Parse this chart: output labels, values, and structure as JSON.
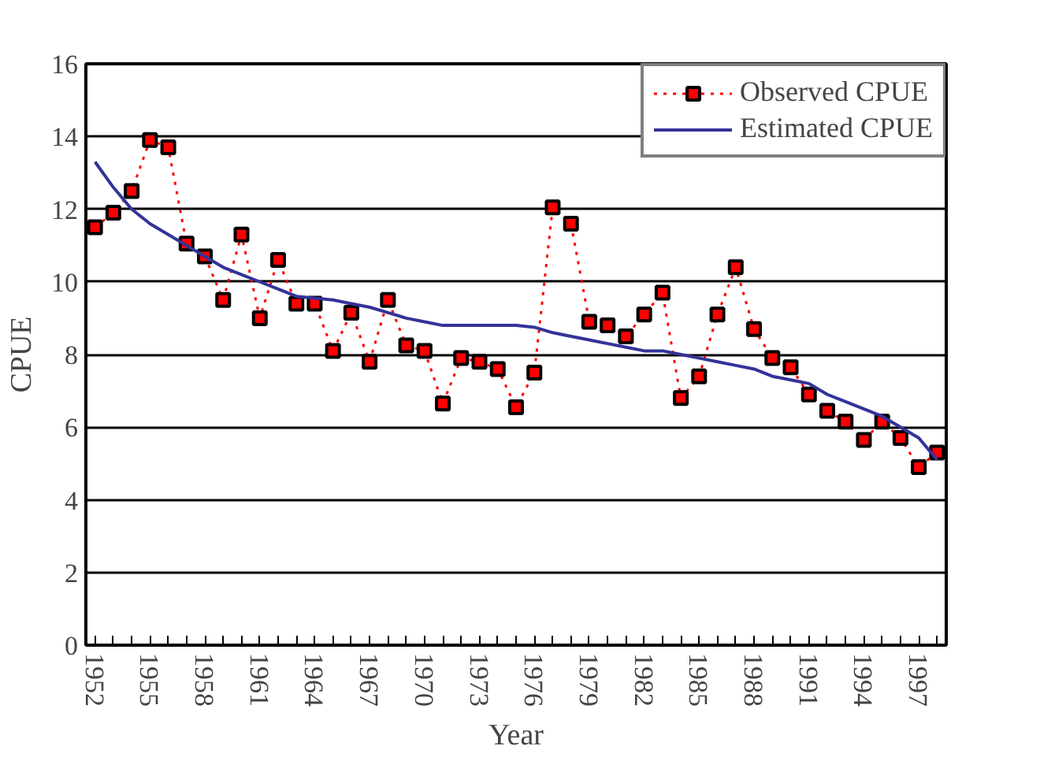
{
  "chart_data": {
    "type": "line",
    "xlabel": "Year",
    "ylabel": "CPUE",
    "categories": [
      "1952",
      null,
      null,
      "1955",
      null,
      null,
      "1958",
      null,
      null,
      "1961",
      null,
      null,
      "1964",
      null,
      null,
      "1967",
      null,
      null,
      "1970",
      null,
      null,
      "1973",
      null,
      null,
      "1976",
      null,
      null,
      "1979",
      null,
      null,
      "1982",
      null,
      null,
      "1985",
      null,
      null,
      "1988",
      null,
      null,
      "1991",
      null,
      null,
      "1994",
      null,
      null,
      "1997",
      null
    ],
    "series": [
      {
        "name": "Observed CPUE",
        "color": "#ff0000",
        "marker": "square",
        "line_style": "dotted",
        "values": [
          11.5,
          11.9,
          12.5,
          13.9,
          13.7,
          11.05,
          10.7,
          9.5,
          11.3,
          9.0,
          10.6,
          9.4,
          9.4,
          8.1,
          9.15,
          7.8,
          9.5,
          8.25,
          8.1,
          6.65,
          7.9,
          7.8,
          7.6,
          6.55,
          7.5,
          12.05,
          11.6,
          8.9,
          8.8,
          8.5,
          9.1,
          9.7,
          6.8,
          7.4,
          9.1,
          10.4,
          8.7,
          7.9,
          7.65,
          6.9,
          6.45,
          6.15,
          5.65,
          6.15,
          5.7,
          4.9,
          5.3
        ]
      },
      {
        "name": "Estimated CPUE",
        "color": "#333399",
        "marker": "none",
        "line_style": "solid",
        "values": [
          13.3,
          12.6,
          12.0,
          11.6,
          11.3,
          11.0,
          10.7,
          10.4,
          10.2,
          10.0,
          9.8,
          9.6,
          9.55,
          9.5,
          9.4,
          9.3,
          9.15,
          9.0,
          8.9,
          8.8,
          8.8,
          8.8,
          8.8,
          8.8,
          8.75,
          8.6,
          8.5,
          8.4,
          8.3,
          8.2,
          8.1,
          8.1,
          8.0,
          7.9,
          7.8,
          7.7,
          7.6,
          7.4,
          7.3,
          7.2,
          6.9,
          6.7,
          6.5,
          6.3,
          6.0,
          5.7,
          5.1
        ]
      }
    ],
    "ylim": [
      0,
      16
    ],
    "yticks": [
      0,
      2,
      4,
      6,
      8,
      10,
      12,
      14,
      16
    ],
    "grid": "y",
    "legend": "top right"
  }
}
